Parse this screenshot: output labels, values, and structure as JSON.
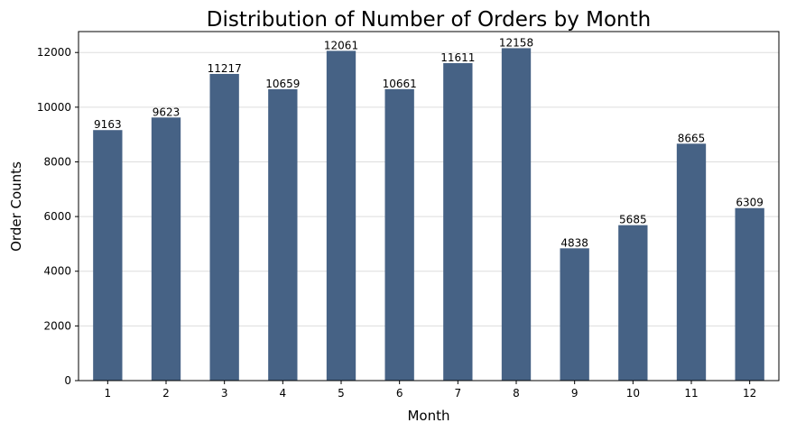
{
  "chart_data": {
    "type": "bar",
    "title": "Distribution of Number of Orders by Month",
    "xlabel": "Month",
    "ylabel": "Order Counts",
    "categories": [
      "1",
      "2",
      "3",
      "4",
      "5",
      "6",
      "7",
      "8",
      "9",
      "10",
      "11",
      "12"
    ],
    "values": [
      9163,
      9623,
      11217,
      10659,
      12061,
      10661,
      11611,
      12158,
      4838,
      5685,
      8665,
      6309
    ],
    "data_labels": [
      "9163",
      "9623",
      "11217",
      "10659",
      "12061",
      "10661",
      "11611",
      "12158",
      "4838",
      "5685",
      "8665",
      "6309"
    ],
    "yticks": [
      0,
      2000,
      4000,
      6000,
      8000,
      10000,
      12000
    ],
    "ytick_labels": [
      "0",
      "2000",
      "4000",
      "6000",
      "8000",
      "10000",
      "12000"
    ],
    "ylim": [
      0,
      12766
    ],
    "grid": "horizontal",
    "legend": "none",
    "bar_color": "#466285",
    "grid_color": "#dddddd"
  }
}
